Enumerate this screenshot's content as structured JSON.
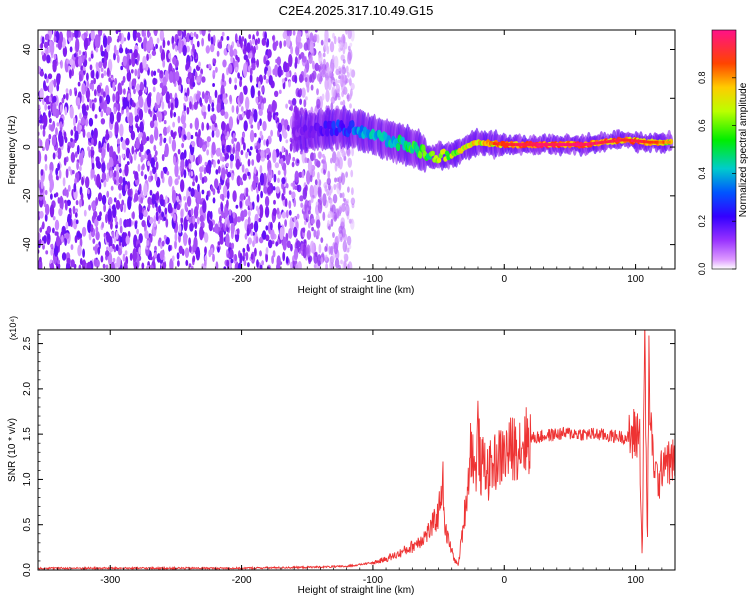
{
  "page_title": "C2E4.2025.317.10.49.G15",
  "chart_data": [
    {
      "type": "heatmap",
      "title": "C2E4.2025.317.10.49.G15",
      "xlabel": "Height of straight line (km)",
      "ylabel": "Frequency (Hz)",
      "xlim": [
        -355,
        130
      ],
      "ylim": [
        -50,
        48
      ],
      "x_ticks": [
        -300,
        -200,
        -100,
        0,
        100
      ],
      "y_ticks": [
        -40,
        -20,
        0,
        20,
        40
      ],
      "colorbar": {
        "label": "Normalized spectral amplitude",
        "range": [
          0,
          1
        ],
        "ticks": [
          0.0,
          0.2,
          0.4,
          0.6,
          0.8
        ],
        "tick_labels": [
          "0.0",
          "0.2",
          "0.4",
          "0.6",
          "0.8"
        ],
        "colors": [
          "#ffffff",
          "#dd99ff",
          "#7700ee",
          "#0000ff",
          "#00cccc",
          "#00ee00",
          "#ffff00",
          "#ff8800",
          "#ff0000",
          "#ff1188"
        ]
      },
      "regions": {
        "noise_x_range": [
          -355,
          -125
        ],
        "ridge_points": [
          {
            "x": -160,
            "y": 6,
            "amp": 0.18
          },
          {
            "x": -125,
            "y": 8,
            "amp": 0.32
          },
          {
            "x": -110,
            "y": 7,
            "amp": 0.42
          },
          {
            "x": -90,
            "y": 3,
            "amp": 0.45
          },
          {
            "x": -70,
            "y": 0,
            "amp": 0.55
          },
          {
            "x": -55,
            "y": -4,
            "amp": 0.62
          },
          {
            "x": -40,
            "y": -3,
            "amp": 0.68
          },
          {
            "x": -20,
            "y": 2,
            "amp": 0.74
          },
          {
            "x": 0,
            "y": 1,
            "amp": 0.82
          },
          {
            "x": 30,
            "y": 1,
            "amp": 0.9
          },
          {
            "x": 60,
            "y": 1,
            "amp": 0.88
          },
          {
            "x": 90,
            "y": 3,
            "amp": 0.86
          },
          {
            "x": 110,
            "y": 2,
            "amp": 0.8
          },
          {
            "x": 128,
            "y": 2,
            "amp": 0.7
          }
        ]
      }
    },
    {
      "type": "line",
      "xlabel": "Height of straight line (km)",
      "ylabel": "SNR (10 * v/v)",
      "y_multiplier": "(x10⁴)",
      "xlim": [
        -355,
        130
      ],
      "ylim": [
        0,
        2.65
      ],
      "x_ticks": [
        -300,
        -200,
        -100,
        0,
        100
      ],
      "y_ticks": [
        0.0,
        0.5,
        1.0,
        1.5,
        2.0,
        2.5
      ],
      "y_tick_labels": [
        "0.0",
        "0.5",
        "1.0",
        "1.5",
        "2.0",
        "2.5"
      ],
      "series": [
        {
          "color": "#ee3333",
          "x": [
            -355,
            -300,
            -200,
            -150,
            -120,
            -100,
            -90,
            -80,
            -70,
            -60,
            -55,
            -50,
            -47,
            -45,
            -42,
            -38,
            -35,
            -32,
            -28,
            -25,
            -22,
            -20,
            -18,
            -15,
            -12,
            -10,
            -5,
            0,
            10,
            20,
            30,
            40,
            50,
            60,
            70,
            80,
            90,
            95,
            100,
            103,
            105,
            107,
            109,
            110,
            112,
            115,
            118,
            122,
            126,
            130
          ],
          "y": [
            0.02,
            0.02,
            0.02,
            0.03,
            0.04,
            0.08,
            0.12,
            0.18,
            0.26,
            0.38,
            0.48,
            0.62,
            1.05,
            0.45,
            0.3,
            0.12,
            0.05,
            0.4,
            0.9,
            1.45,
            1.0,
            1.55,
            1.1,
            1.2,
            1.05,
            1.15,
            1.22,
            1.28,
            1.38,
            1.45,
            1.48,
            1.5,
            1.51,
            1.5,
            1.5,
            1.48,
            1.47,
            1.45,
            1.5,
            1.55,
            0.1,
            2.6,
            0.15,
            2.3,
            1.4,
            1.1,
            0.95,
            1.3,
            1.15,
            1.25
          ]
        }
      ]
    }
  ]
}
